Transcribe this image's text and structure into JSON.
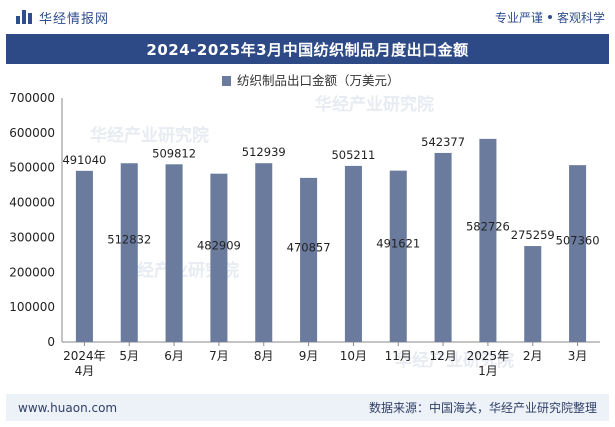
{
  "header": {
    "brand_name": "华经情报网",
    "tagline_left": "专业严谨",
    "tagline_right": "客观科学"
  },
  "footer": {
    "website": "www.huaon.com",
    "source": "数据来源：中国海关，华经产业研究院整理"
  },
  "watermark_text": "华经产业研究院",
  "colors": {
    "bar": "#6b7b9e",
    "title_bar": "#2d4a86",
    "brand": "#2f4e8e",
    "footer_bg": "#edf1f8"
  },
  "chart_data": {
    "type": "bar",
    "title": "2024-2025年3月中国纺织制品月度出口金额",
    "legend": "top-center",
    "grid": false,
    "categories": [
      [
        "2024年",
        "4月"
      ],
      [
        "5月"
      ],
      [
        "6月"
      ],
      [
        "7月"
      ],
      [
        "8月"
      ],
      [
        "9月"
      ],
      [
        "10月"
      ],
      [
        "11月"
      ],
      [
        "12月"
      ],
      [
        "2025年",
        "1月"
      ],
      [
        "2月"
      ],
      [
        "3月"
      ]
    ],
    "series": [
      {
        "name": "纺织制品出口金额（万美元）",
        "values": [
          491040,
          512832,
          509812,
          482909,
          512939,
          470857,
          505211,
          491621,
          542377,
          582726,
          275259,
          507360
        ]
      }
    ],
    "data_label_placement": [
      "above",
      "inside",
      "above",
      "inside",
      "above",
      "inside",
      "above",
      "inside",
      "above",
      "inside",
      "above",
      "inside"
    ],
    "ylim": [
      0,
      700000
    ],
    "yticks": [
      0,
      100000,
      200000,
      300000,
      400000,
      500000,
      600000,
      700000
    ]
  }
}
